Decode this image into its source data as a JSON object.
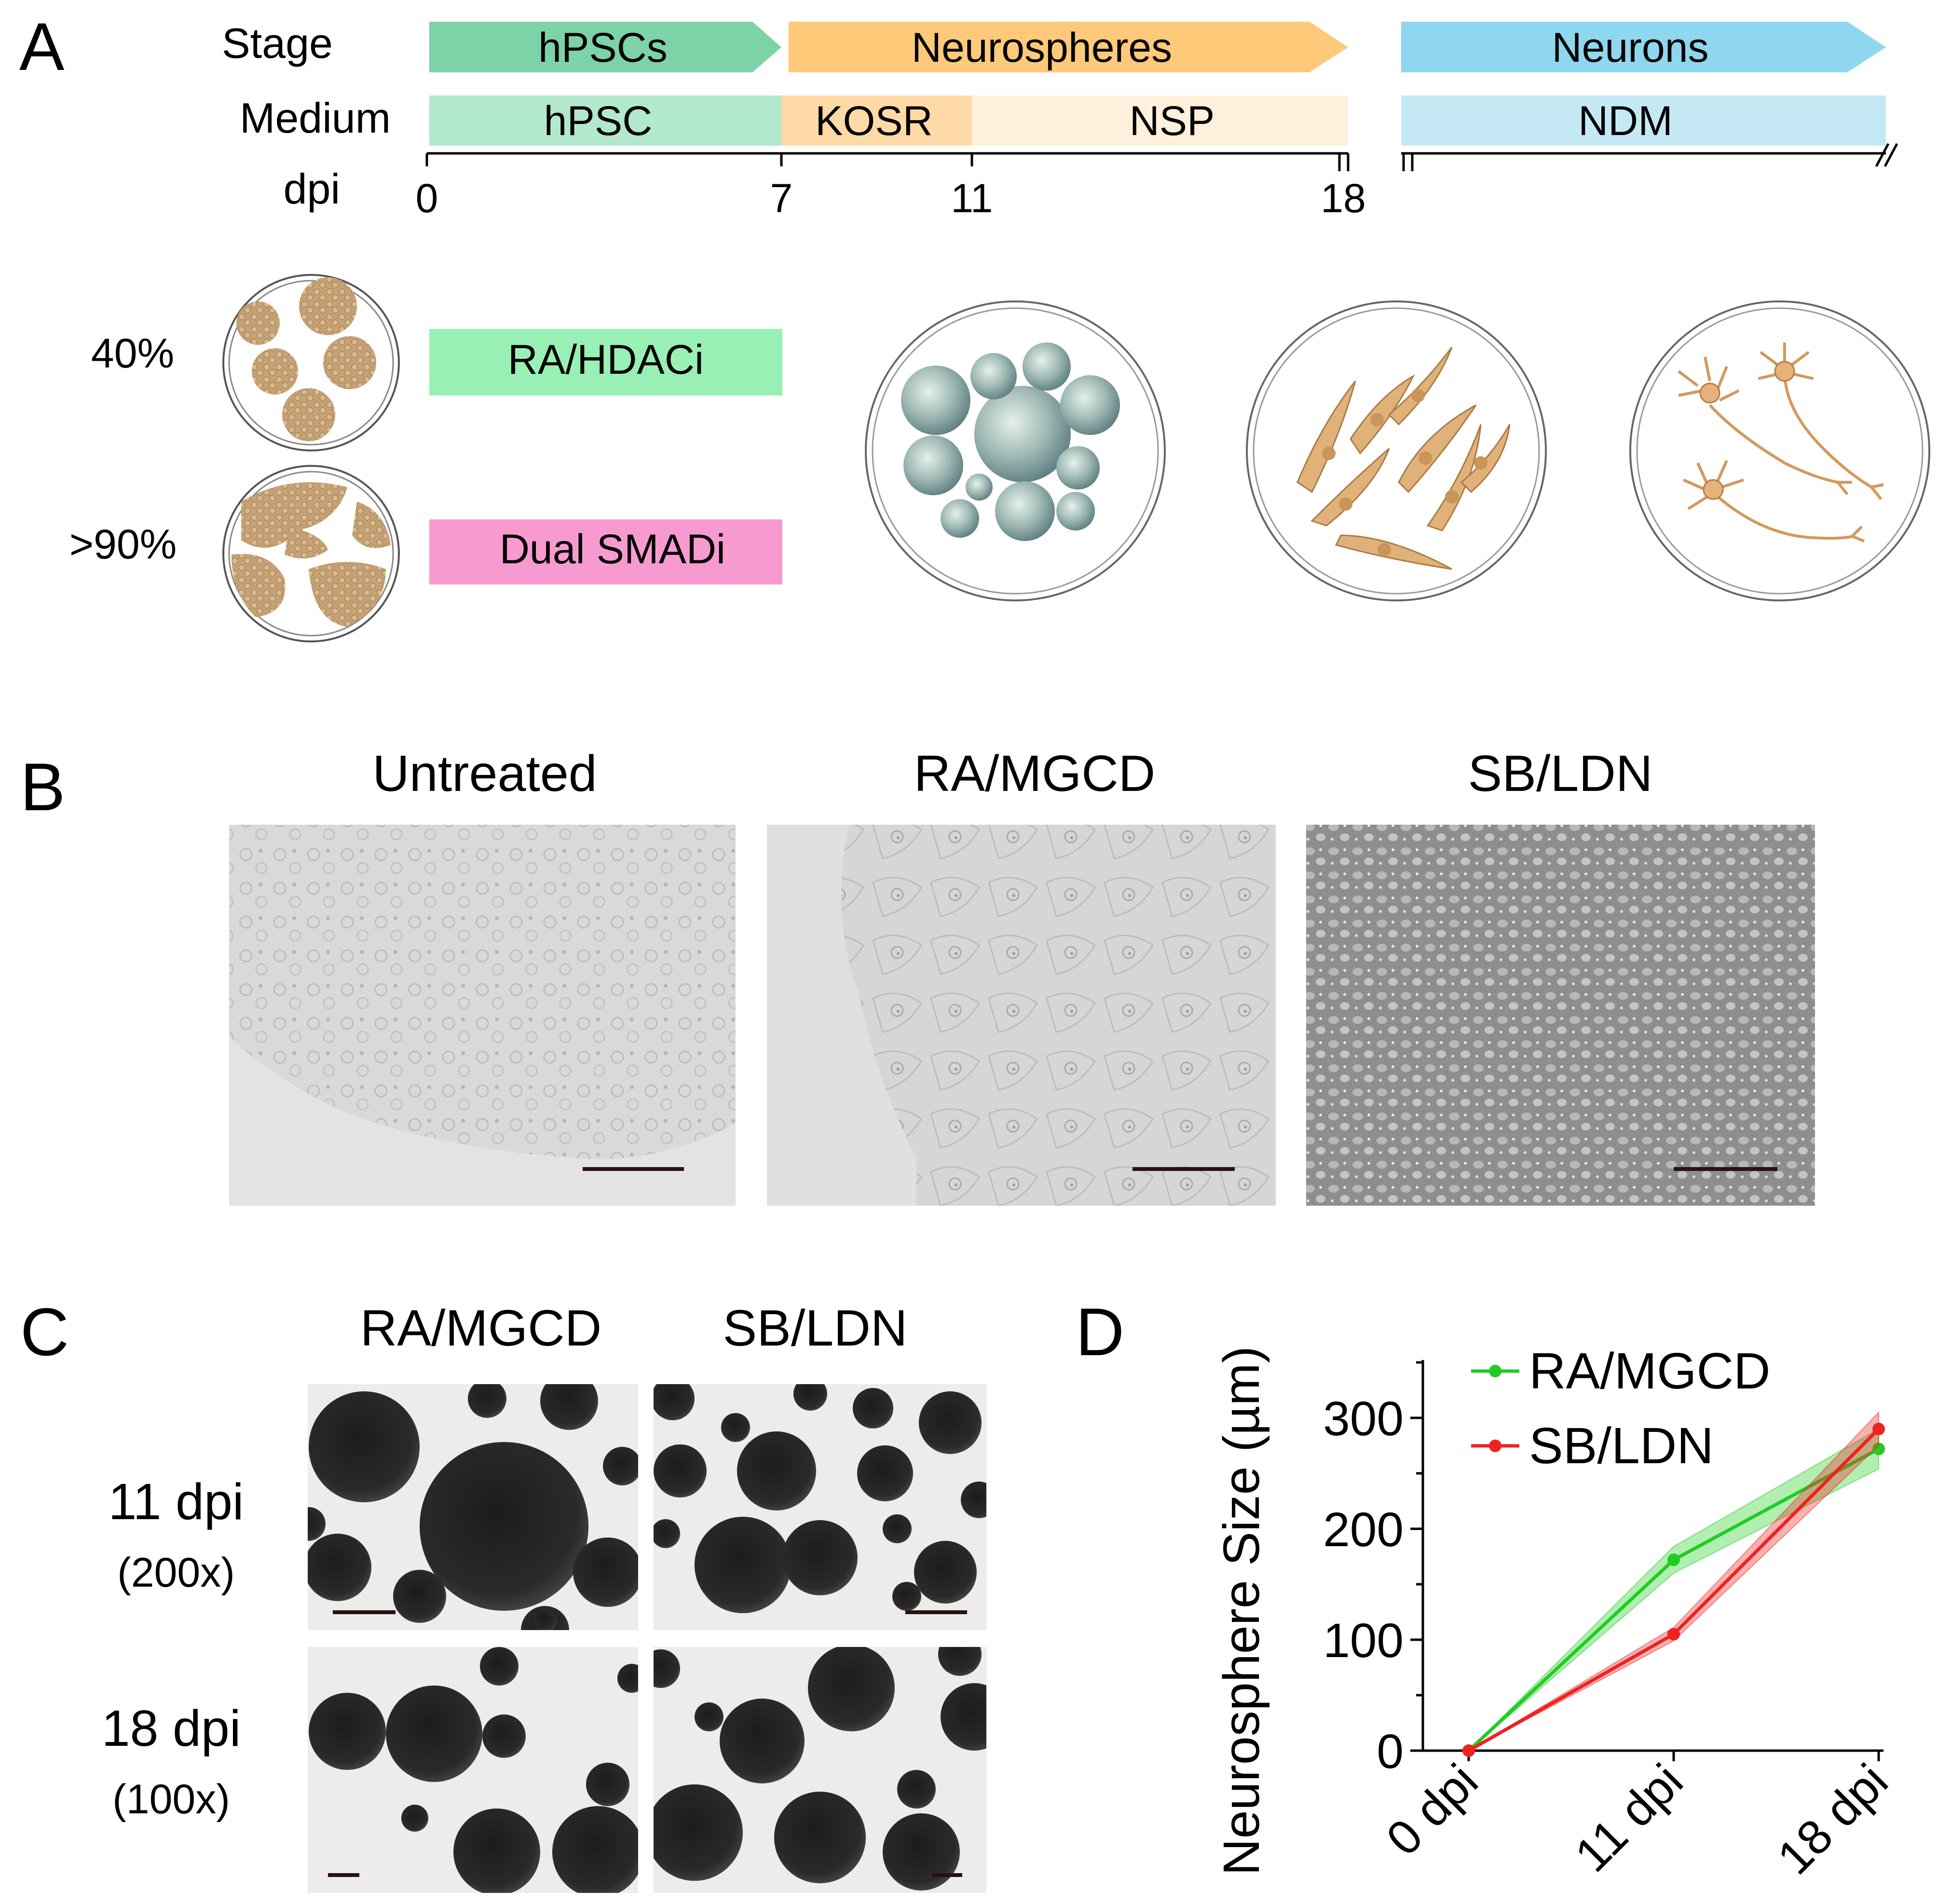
{
  "panels": {
    "a": {
      "letter": "A",
      "row_labels": {
        "stage": "Stage",
        "medium": "Medium",
        "dpi": "dpi"
      },
      "stages": [
        {
          "label": "hPSCs",
          "color": "#7dd3a8"
        },
        {
          "label": "Neurospheres",
          "color": "#ffc97a"
        },
        {
          "label": "Neurons",
          "color": "#8fd6ef"
        }
      ],
      "media": [
        {
          "label": "hPSC",
          "color": "#b2e8cc"
        },
        {
          "label": "KOSR",
          "color": "#ffd9a6"
        },
        {
          "label": "NSP",
          "color": "#fff0dc"
        },
        {
          "label": "NDM",
          "color": "#c4e9f5"
        }
      ],
      "dpi_ticks": [
        "0",
        "7",
        "11",
        "18"
      ],
      "confluence": [
        "40%",
        ">90%"
      ],
      "treatments": [
        {
          "label": "RA/HDACi",
          "color": "#99f0b4"
        },
        {
          "label": "Dual SMADi",
          "color": "#f79ad0"
        }
      ]
    },
    "b": {
      "letter": "B",
      "conditions": [
        "Untreated",
        "RA/MGCD",
        "SB/LDN"
      ]
    },
    "c": {
      "letter": "C",
      "columns": [
        "RA/MGCD",
        "SB/LDN"
      ],
      "rows": [
        {
          "day": "11 dpi",
          "mag": "(200x)"
        },
        {
          "day": "18 dpi",
          "mag": "(100x)"
        }
      ]
    },
    "d": {
      "letter": "D"
    }
  },
  "chart_data": {
    "type": "line",
    "ylabel": "Neurosphere Size (µm)",
    "categories": [
      "0 dpi",
      "11 dpi",
      "18 dpi"
    ],
    "yticks": [
      0,
      100,
      200,
      300
    ],
    "ylim": [
      0,
      350
    ],
    "legend_position": "top-left",
    "series": [
      {
        "name": "RA/MGCD",
        "color": "#22cc22",
        "values": [
          0,
          172,
          272
        ],
        "error": [
          0,
          12,
          18
        ]
      },
      {
        "name": "SB/LDN",
        "color": "#ee2222",
        "values": [
          0,
          105,
          290
        ],
        "error": [
          0,
          6,
          15
        ]
      }
    ]
  }
}
